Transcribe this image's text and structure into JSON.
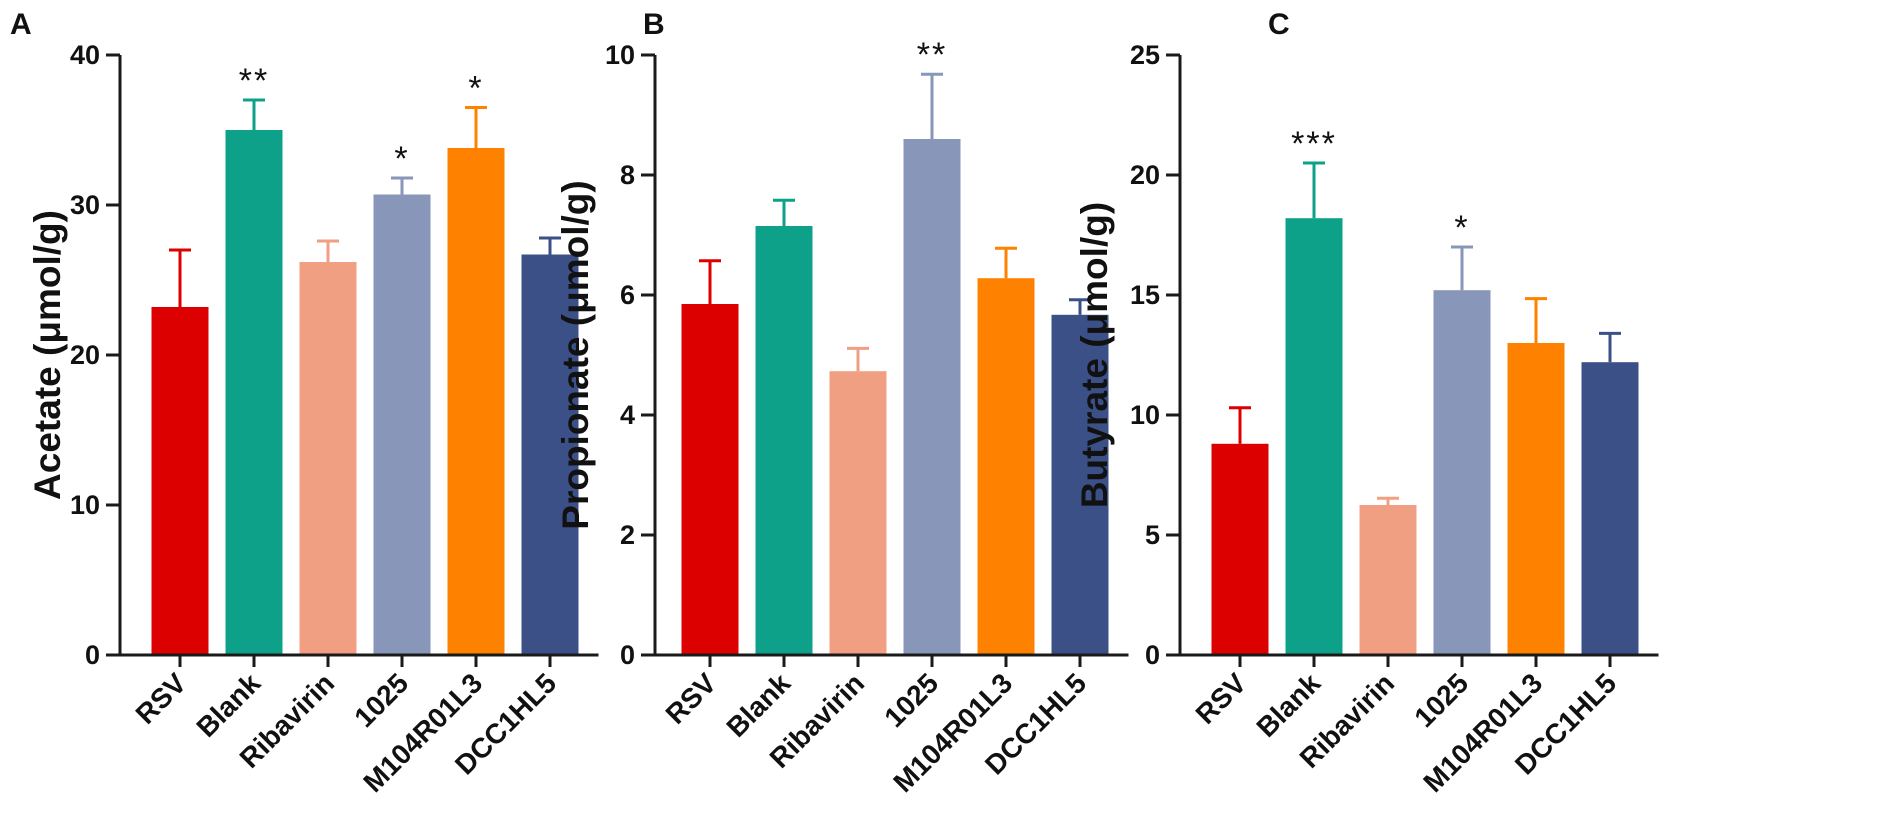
{
  "chart_data": [
    {
      "panel": "A",
      "type": "bar",
      "ylabel": "Acetate (μmol/g)",
      "ylim": [
        0,
        40
      ],
      "yticks": [
        0,
        10,
        20,
        30,
        40
      ],
      "categories": [
        "RSV",
        "Blank",
        "Ribavirin",
        "1025",
        "M104R01L3",
        "DCC1HL5"
      ],
      "values": [
        23.2,
        35.0,
        26.2,
        30.7,
        33.8,
        26.7
      ],
      "errors": [
        3.8,
        2.0,
        1.4,
        1.1,
        2.7,
        1.1
      ],
      "significance": [
        "",
        "**",
        "",
        "*",
        "*",
        ""
      ],
      "colors": [
        "#dd0000",
        "#0ea18a",
        "#f09f82",
        "#8796b9",
        "#ff8100",
        "#3c5088"
      ]
    },
    {
      "panel": "B",
      "type": "bar",
      "ylabel": "Propionate (μmol/g)",
      "ylim": [
        0,
        10
      ],
      "yticks": [
        0,
        2,
        4,
        6,
        8,
        10
      ],
      "categories": [
        "RSV",
        "Blank",
        "Ribavirin",
        "1025",
        "M104R01L3",
        "DCC1HL5"
      ],
      "values": [
        5.85,
        7.15,
        4.73,
        8.6,
        6.28,
        5.67
      ],
      "errors": [
        0.72,
        0.43,
        0.38,
        1.08,
        0.5,
        0.25
      ],
      "significance": [
        "",
        "",
        "",
        "**",
        "",
        ""
      ],
      "colors": [
        "#dd0000",
        "#0ea18a",
        "#f09f82",
        "#8796b9",
        "#ff8100",
        "#3c5088"
      ]
    },
    {
      "panel": "C",
      "type": "bar",
      "ylabel": "Butyrate  (μmol/g)",
      "ylim": [
        0,
        25
      ],
      "yticks": [
        0,
        5,
        10,
        15,
        20,
        25
      ],
      "categories": [
        "RSV",
        "Blank",
        "Ribavirin",
        "1025",
        "M104R01L3",
        "DCC1HL5"
      ],
      "values": [
        8.8,
        18.2,
        6.25,
        15.2,
        13.0,
        12.2
      ],
      "errors": [
        1.5,
        2.3,
        0.28,
        1.8,
        1.85,
        1.2
      ],
      "significance": [
        "",
        "***",
        "",
        "*",
        "",
        ""
      ],
      "colors": [
        "#dd0000",
        "#0ea18a",
        "#f09f82",
        "#8796b9",
        "#ff8100",
        "#3c5088"
      ]
    }
  ]
}
